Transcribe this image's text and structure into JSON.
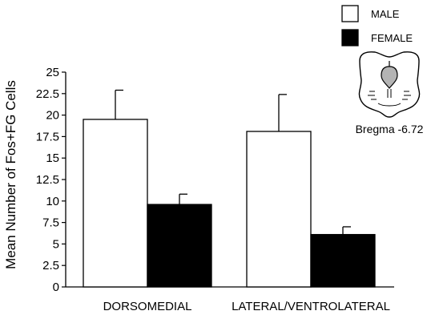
{
  "chart_data": {
    "type": "bar",
    "title": "",
    "xlabel": "",
    "ylabel": "Mean Number of Fos+FG Cells",
    "categories": [
      "DORSOMEDIAL",
      "LATERAL/VENTROLATERAL"
    ],
    "series": [
      {
        "name": "MALE",
        "color": "#ffffff",
        "values": [
          19.5,
          18.1
        ],
        "errors": [
          3.4,
          4.3
        ]
      },
      {
        "name": "FEMALE",
        "color": "#000000",
        "values": [
          9.6,
          6.1
        ],
        "errors": [
          1.2,
          0.9
        ]
      }
    ],
    "ylim": [
      0,
      25
    ],
    "yticks": [
      "0",
      "2.5",
      "5",
      "7.5",
      "10",
      "12.5",
      "15",
      "17.5",
      "20",
      "22.5",
      "25"
    ],
    "grid": false,
    "legend_position": "top-right"
  },
  "inset": {
    "label": "Bregma -6.72",
    "icon": "brain-section-icon"
  }
}
